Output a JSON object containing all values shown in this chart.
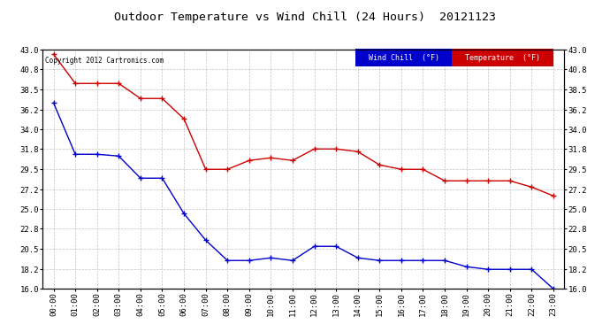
{
  "title": "Outdoor Temperature vs Wind Chill (24 Hours)  20121123",
  "copyright": "Copyright 2012 Cartronics.com",
  "xlabel_times": [
    "00:00",
    "01:00",
    "02:00",
    "03:00",
    "04:00",
    "05:00",
    "06:00",
    "07:00",
    "08:00",
    "09:00",
    "10:00",
    "11:00",
    "12:00",
    "13:00",
    "14:00",
    "15:00",
    "16:00",
    "17:00",
    "18:00",
    "19:00",
    "20:00",
    "21:00",
    "22:00",
    "23:00"
  ],
  "temperature": [
    42.5,
    39.2,
    39.2,
    39.2,
    37.5,
    37.5,
    35.2,
    29.5,
    29.5,
    30.5,
    30.8,
    30.5,
    31.8,
    31.8,
    31.5,
    30.0,
    29.5,
    29.5,
    28.2,
    28.2,
    28.2,
    28.2,
    27.5,
    26.5
  ],
  "wind_chill": [
    37.0,
    31.2,
    31.2,
    31.0,
    28.5,
    28.5,
    24.5,
    21.5,
    19.2,
    19.2,
    19.5,
    19.2,
    20.8,
    20.8,
    19.5,
    19.2,
    19.2,
    19.2,
    19.2,
    18.5,
    18.2,
    18.2,
    18.2,
    16.0
  ],
  "ylim_min": 16.0,
  "ylim_max": 43.0,
  "yticks": [
    16.0,
    18.2,
    20.5,
    22.8,
    25.0,
    27.2,
    29.5,
    31.8,
    34.0,
    36.2,
    38.5,
    40.8,
    43.0
  ],
  "temp_color": "#cc0000",
  "wind_chill_color": "#0000cc",
  "bg_color": "#ffffff",
  "plot_bg_color": "#ffffff",
  "grid_color": "#aaaaaa",
  "legend_wind_chill_bg": "#0000cc",
  "legend_temp_bg": "#cc0000",
  "legend_wind_chill_text": "Wind Chill  (°F)",
  "legend_temp_text": "Temperature  (°F)"
}
